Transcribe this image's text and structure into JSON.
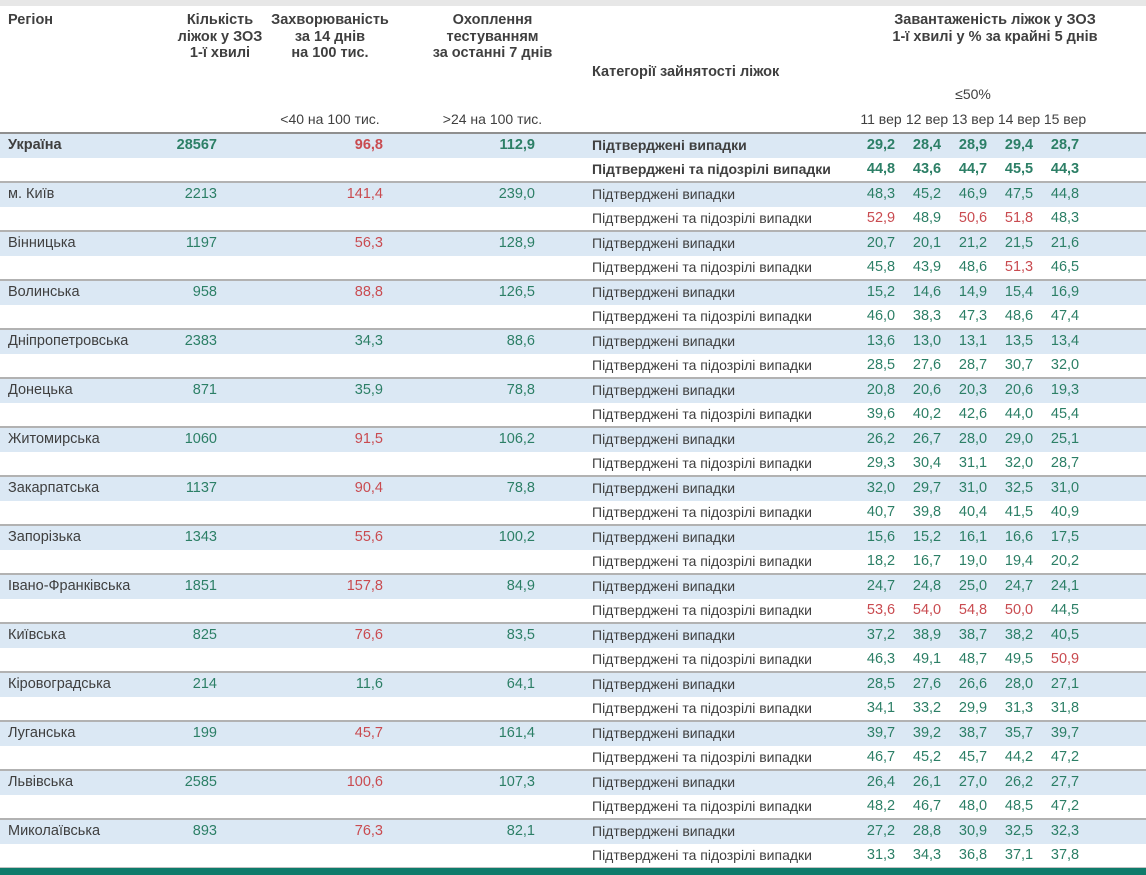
{
  "colors": {
    "green": "#2c7f66",
    "red": "#c94b50",
    "row_band": "#dbe8f4",
    "bottom_bar": "#0e7b6b"
  },
  "header": {
    "region": "Регіон",
    "beds": "Кількість\nліжок у ЗОЗ\n1-ї хвилі",
    "incidence": "Захворюваність\nза 14 днів\nна 100 тис.",
    "incidence_threshold": "<40 на 100 тис.",
    "testing": "Охоплення\nтестуванням\nза останні 7 днів",
    "testing_threshold": ">24 на 100 тис.",
    "category": "Категорії зайнятості ліжок",
    "occupancy": "Завантаженість ліжок у ЗОЗ\n1-ї хвилі у % за крайні 5 днів",
    "occupancy_threshold": "≤50%"
  },
  "row_labels": {
    "confirmed": "Підтверджені випадки",
    "confirmed_suspected": "Підтверджені та підозрілі випадки"
  },
  "chart_data": {
    "type": "table",
    "title": "Завантаженість ліжок у ЗОЗ 1-ї хвилі у % за крайні 5 днів",
    "date_columns": [
      "11 вер",
      "12 вер",
      "13 вер",
      "14 вер",
      "15 вер"
    ],
    "rows": [
      {
        "name": "Україна",
        "bold": true,
        "beds": "28567",
        "incidence": "96,8",
        "incidence_red": true,
        "testing": "112,9",
        "confirmed": [
          "29,2",
          "28,4",
          "28,9",
          "29,4",
          "28,7"
        ],
        "confirmed_red": [],
        "suspected": [
          "44,8",
          "43,6",
          "44,7",
          "45,5",
          "44,3"
        ],
        "suspected_red": []
      },
      {
        "name": "м. Київ",
        "bold": false,
        "beds": "2213",
        "incidence": "141,4",
        "incidence_red": true,
        "testing": "239,0",
        "confirmed": [
          "48,3",
          "45,2",
          "46,9",
          "47,5",
          "44,8"
        ],
        "confirmed_red": [],
        "suspected": [
          "52,9",
          "48,9",
          "50,6",
          "51,8",
          "48,3"
        ],
        "suspected_red": [
          0,
          2,
          3
        ]
      },
      {
        "name": "Вінницька",
        "bold": false,
        "beds": "1197",
        "incidence": "56,3",
        "incidence_red": true,
        "testing": "128,9",
        "confirmed": [
          "20,7",
          "20,1",
          "21,2",
          "21,5",
          "21,6"
        ],
        "confirmed_red": [],
        "suspected": [
          "45,8",
          "43,9",
          "48,6",
          "51,3",
          "46,5"
        ],
        "suspected_red": [
          3
        ]
      },
      {
        "name": "Волинська",
        "bold": false,
        "beds": "958",
        "incidence": "88,8",
        "incidence_red": true,
        "testing": "126,5",
        "confirmed": [
          "15,2",
          "14,6",
          "14,9",
          "15,4",
          "16,9"
        ],
        "confirmed_red": [],
        "suspected": [
          "46,0",
          "38,3",
          "47,3",
          "48,6",
          "47,4"
        ],
        "suspected_red": []
      },
      {
        "name": "Дніпропетровська",
        "bold": false,
        "beds": "2383",
        "incidence": "34,3",
        "incidence_red": false,
        "testing": "88,6",
        "confirmed": [
          "13,6",
          "13,0",
          "13,1",
          "13,5",
          "13,4"
        ],
        "confirmed_red": [],
        "suspected": [
          "28,5",
          "27,6",
          "28,7",
          "30,7",
          "32,0"
        ],
        "suspected_red": []
      },
      {
        "name": "Донецька",
        "bold": false,
        "beds": "871",
        "incidence": "35,9",
        "incidence_red": false,
        "testing": "78,8",
        "confirmed": [
          "20,8",
          "20,6",
          "20,3",
          "20,6",
          "19,3"
        ],
        "confirmed_red": [],
        "suspected": [
          "39,6",
          "40,2",
          "42,6",
          "44,0",
          "45,4"
        ],
        "suspected_red": []
      },
      {
        "name": "Житомирська",
        "bold": false,
        "beds": "1060",
        "incidence": "91,5",
        "incidence_red": true,
        "testing": "106,2",
        "confirmed": [
          "26,2",
          "26,7",
          "28,0",
          "29,0",
          "25,1"
        ],
        "confirmed_red": [],
        "suspected": [
          "29,3",
          "30,4",
          "31,1",
          "32,0",
          "28,7"
        ],
        "suspected_red": []
      },
      {
        "name": "Закарпатська",
        "bold": false,
        "beds": "1137",
        "incidence": "90,4",
        "incidence_red": true,
        "testing": "78,8",
        "confirmed": [
          "32,0",
          "29,7",
          "31,0",
          "32,5",
          "31,0"
        ],
        "confirmed_red": [],
        "suspected": [
          "40,7",
          "39,8",
          "40,4",
          "41,5",
          "40,9"
        ],
        "suspected_red": []
      },
      {
        "name": "Запорізька",
        "bold": false,
        "beds": "1343",
        "incidence": "55,6",
        "incidence_red": true,
        "testing": "100,2",
        "confirmed": [
          "15,6",
          "15,2",
          "16,1",
          "16,6",
          "17,5"
        ],
        "confirmed_red": [],
        "suspected": [
          "18,2",
          "16,7",
          "19,0",
          "19,4",
          "20,2"
        ],
        "suspected_red": []
      },
      {
        "name": "Івано-Франківська",
        "bold": false,
        "beds": "1851",
        "incidence": "157,8",
        "incidence_red": true,
        "testing": "84,9",
        "confirmed": [
          "24,7",
          "24,8",
          "25,0",
          "24,7",
          "24,1"
        ],
        "confirmed_red": [],
        "suspected": [
          "53,6",
          "54,0",
          "54,8",
          "50,0",
          "44,5"
        ],
        "suspected_red": [
          0,
          1,
          2,
          3
        ]
      },
      {
        "name": "Київська",
        "bold": false,
        "beds": "825",
        "incidence": "76,6",
        "incidence_red": true,
        "testing": "83,5",
        "confirmed": [
          "37,2",
          "38,9",
          "38,7",
          "38,2",
          "40,5"
        ],
        "confirmed_red": [],
        "suspected": [
          "46,3",
          "49,1",
          "48,7",
          "49,5",
          "50,9"
        ],
        "suspected_red": [
          4
        ]
      },
      {
        "name": "Кіровоградська",
        "bold": false,
        "beds": "214",
        "incidence": "11,6",
        "incidence_red": false,
        "testing": "64,1",
        "confirmed": [
          "28,5",
          "27,6",
          "26,6",
          "28,0",
          "27,1"
        ],
        "confirmed_red": [],
        "suspected": [
          "34,1",
          "33,2",
          "29,9",
          "31,3",
          "31,8"
        ],
        "suspected_red": []
      },
      {
        "name": "Луганська",
        "bold": false,
        "beds": "199",
        "incidence": "45,7",
        "incidence_red": true,
        "testing": "161,4",
        "confirmed": [
          "39,7",
          "39,2",
          "38,7",
          "35,7",
          "39,7"
        ],
        "confirmed_red": [],
        "suspected": [
          "46,7",
          "45,2",
          "45,7",
          "44,2",
          "47,2"
        ],
        "suspected_red": []
      },
      {
        "name": "Львівська",
        "bold": false,
        "beds": "2585",
        "incidence": "100,6",
        "incidence_red": true,
        "testing": "107,3",
        "confirmed": [
          "26,4",
          "26,1",
          "27,0",
          "26,2",
          "27,7"
        ],
        "confirmed_red": [],
        "suspected": [
          "48,2",
          "46,7",
          "48,0",
          "48,5",
          "47,2"
        ],
        "suspected_red": []
      },
      {
        "name": "Миколаївська",
        "bold": false,
        "beds": "893",
        "incidence": "76,3",
        "incidence_red": true,
        "testing": "82,1",
        "confirmed": [
          "27,2",
          "28,8",
          "30,9",
          "32,5",
          "32,3"
        ],
        "confirmed_red": [],
        "suspected": [
          "31,3",
          "34,3",
          "36,8",
          "37,1",
          "37,8"
        ],
        "suspected_red": []
      }
    ]
  }
}
